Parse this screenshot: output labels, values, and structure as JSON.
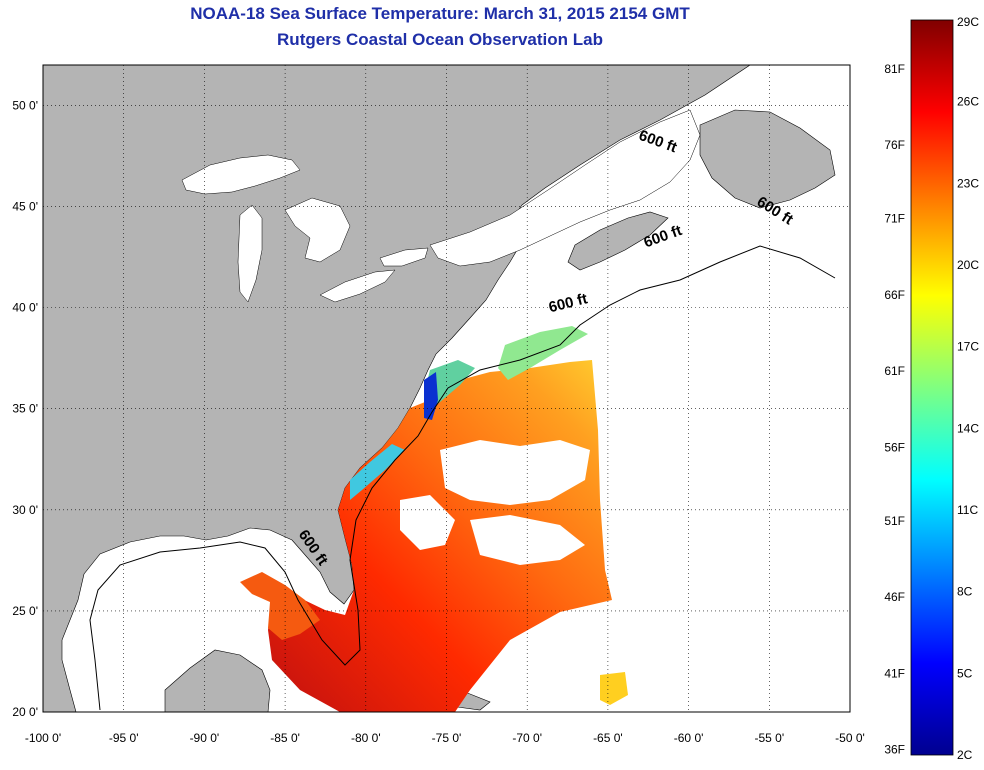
{
  "title": "NOAA-18 Sea Surface Temperature:  March 31, 2015 2154 GMT",
  "subtitle": "Rutgers Coastal Ocean Observation Lab",
  "map": {
    "lon_range": [
      -100,
      -50
    ],
    "lat_range": [
      20,
      52
    ],
    "lon_ticks": [
      {
        "value": -100,
        "label": "-100 0'"
      },
      {
        "value": -95,
        "label": "-95 0'"
      },
      {
        "value": -90,
        "label": "-90 0'"
      },
      {
        "value": -85,
        "label": "-85 0'"
      },
      {
        "value": -80,
        "label": "-80 0'"
      },
      {
        "value": -75,
        "label": "-75 0'"
      },
      {
        "value": -70,
        "label": "-70 0'"
      },
      {
        "value": -65,
        "label": "-65 0'"
      },
      {
        "value": -60,
        "label": "-60 0'"
      },
      {
        "value": -55,
        "label": "-55 0'"
      },
      {
        "value": -50,
        "label": "-50 0'"
      }
    ],
    "lat_ticks": [
      {
        "value": 20,
        "label": "20 0'"
      },
      {
        "value": 25,
        "label": "25 0'"
      },
      {
        "value": 30,
        "label": "30 0'"
      },
      {
        "value": 35,
        "label": "35 0'"
      },
      {
        "value": 40,
        "label": "40 0'"
      },
      {
        "value": 45,
        "label": "45 0'"
      },
      {
        "value": 50,
        "label": "50 0'"
      }
    ],
    "grid": true,
    "land_color": "#b4b4b4",
    "depth_labels": [
      {
        "text": "600 ft",
        "lon": -62,
        "lat": 48,
        "angle": 20
      },
      {
        "text": "600 ft",
        "lon": -54.8,
        "lat": 44.6,
        "angle": 32
      },
      {
        "text": "600 ft",
        "lon": -61.5,
        "lat": 43.3,
        "angle": -20
      },
      {
        "text": "600 ft",
        "lon": -67.4,
        "lat": 40,
        "angle": -14
      },
      {
        "text": "600 ft",
        "lon": -83.5,
        "lat": 28,
        "angle": 55
      }
    ]
  },
  "colorbar": {
    "fahrenheit": [
      {
        "value": "36F",
        "c": 2.2
      },
      {
        "value": "41F",
        "c": 5
      },
      {
        "value": "46F",
        "c": 7.8
      },
      {
        "value": "51F",
        "c": 10.6
      },
      {
        "value": "56F",
        "c": 13.3
      },
      {
        "value": "61F",
        "c": 16.1
      },
      {
        "value": "66F",
        "c": 18.9
      },
      {
        "value": "71F",
        "c": 21.7
      },
      {
        "value": "76F",
        "c": 24.4
      },
      {
        "value": "81F",
        "c": 27.2
      }
    ],
    "celsius": [
      {
        "value": "2C",
        "c": 2
      },
      {
        "value": "5C",
        "c": 5
      },
      {
        "value": "8C",
        "c": 8
      },
      {
        "value": "11C",
        "c": 11
      },
      {
        "value": "14C",
        "c": 14
      },
      {
        "value": "17C",
        "c": 17
      },
      {
        "value": "20C",
        "c": 20
      },
      {
        "value": "23C",
        "c": 23
      },
      {
        "value": "26C",
        "c": 26
      },
      {
        "value": "29C",
        "c": 29
      }
    ],
    "range_c": [
      2,
      29
    ],
    "colors": [
      "#00008f",
      "#0000ff",
      "#0080ff",
      "#00ffff",
      "#80ff80",
      "#ffff00",
      "#ff8000",
      "#ff0000",
      "#800000"
    ]
  }
}
